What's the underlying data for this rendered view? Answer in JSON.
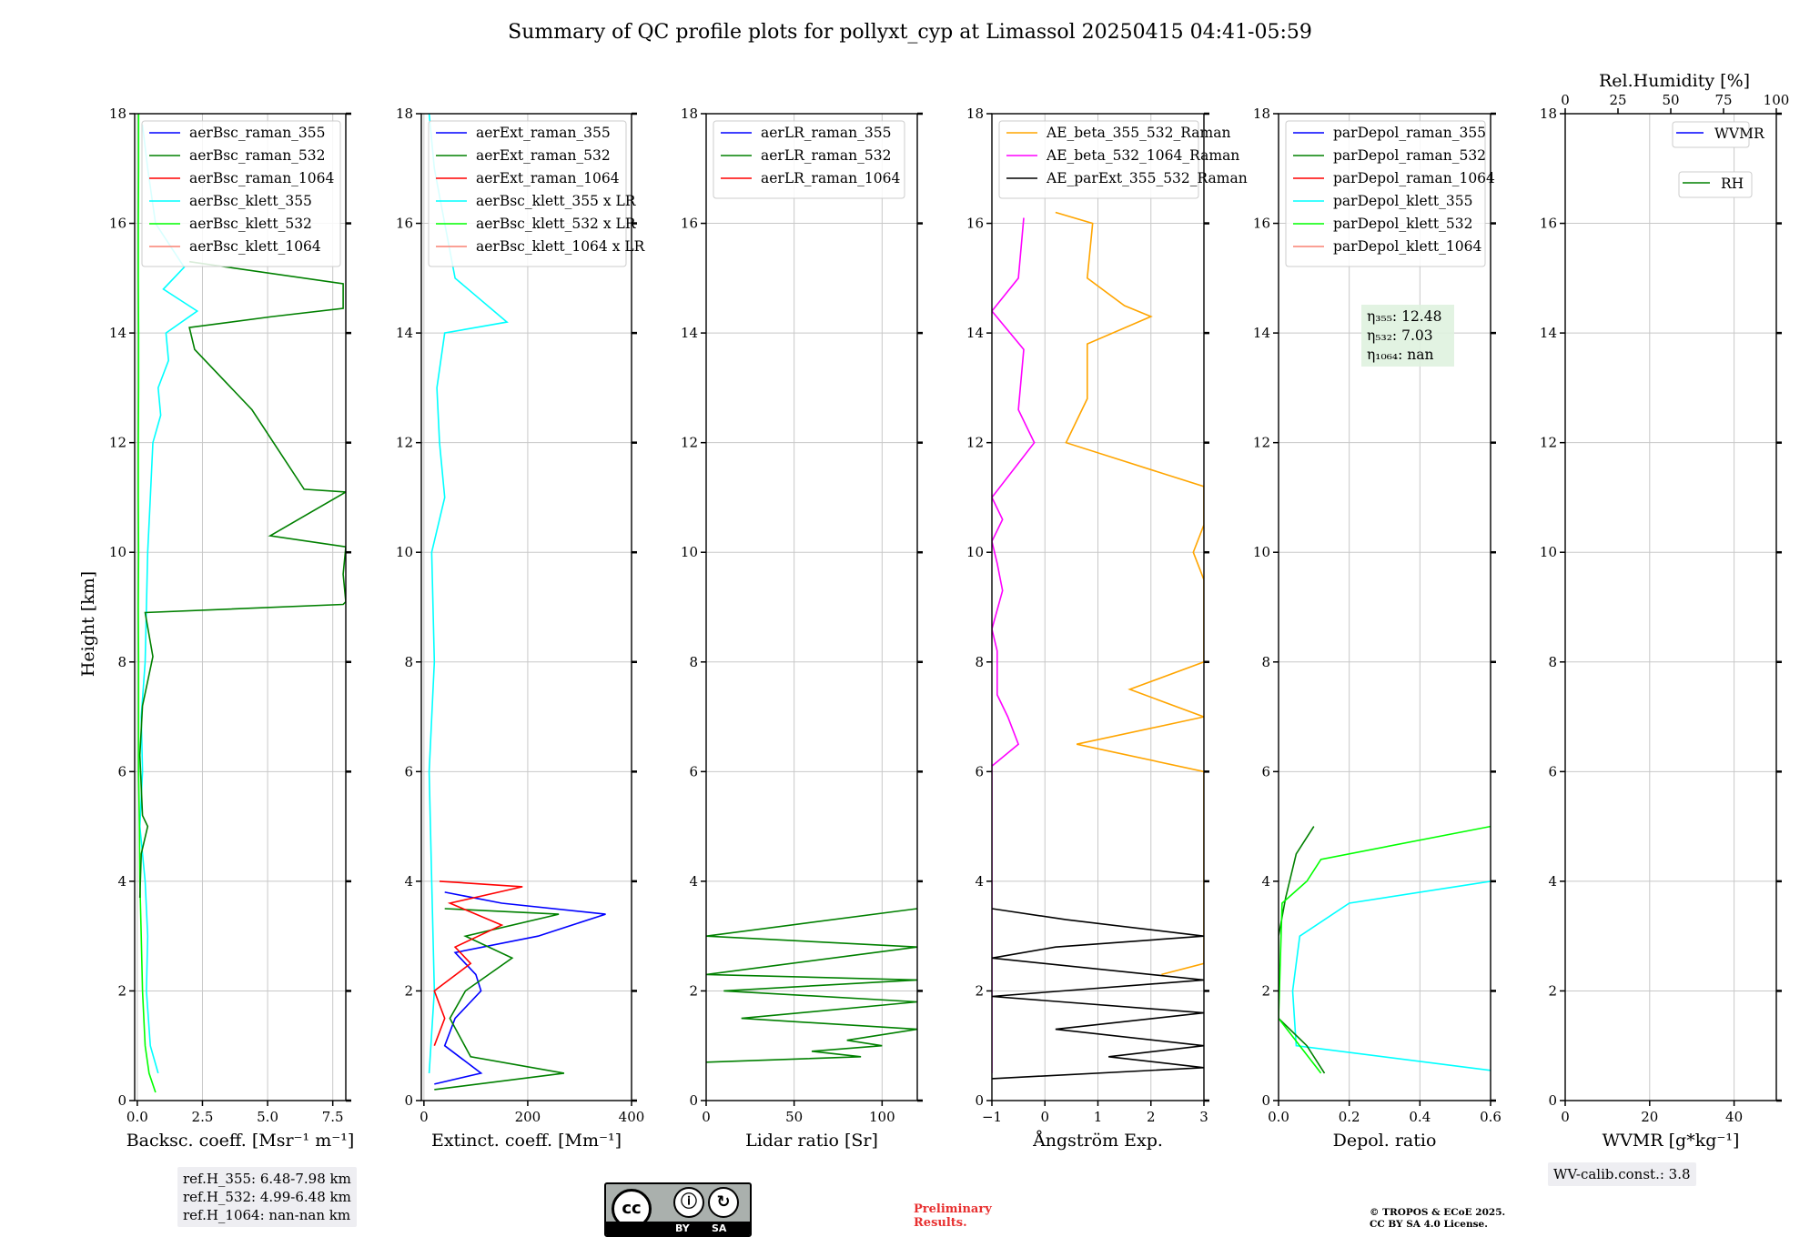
{
  "figure": {
    "title": "Summary of QC profile plots for pollyxt_cyp at Limassol 20250415 04:41-05:59",
    "ref_heights": [
      "ref.H_355: 6.48-7.98 km",
      "ref.H_532: 4.99-6.48 km",
      "ref.H_1064: nan-nan km"
    ],
    "wv_calib": "WV-calib.const.: 3.8",
    "license_badge": {
      "cc": "cc",
      "by": "BY",
      "sa": "SA"
    },
    "preliminary": [
      "Preliminary",
      "Results."
    ],
    "copyright": [
      "© TROPOS & ECoE 2025.",
      "CC BY SA 4.0 License."
    ],
    "colors": {
      "blue": "#0000ff",
      "green": "#008000",
      "red": "#ff0000",
      "cyan": "#00ffff",
      "lime": "#00ff00",
      "salmon": "#fa8072",
      "orange": "#ffa500",
      "magenta": "#ff00ff",
      "black": "#000000",
      "grid": "#c8c8c8"
    }
  },
  "chart_data": [
    {
      "type": "line",
      "ylabel": "Height [km]",
      "xlabel": "Backsc. coeff. [Msr⁻¹ m⁻¹]",
      "xlim": [
        -0.1,
        8.0
      ],
      "ylim": [
        0,
        18
      ],
      "xticks": [
        0,
        2.5,
        5,
        7.5
      ],
      "xtick_labels": [
        "0.0",
        "2.5",
        "5.0",
        "7.5"
      ],
      "yticks": [
        0,
        2,
        4,
        6,
        8,
        10,
        12,
        14,
        16,
        18
      ],
      "legend": [
        {
          "label": "aerBsc_raman_355",
          "color": "#0000ff"
        },
        {
          "label": "aerBsc_raman_532",
          "color": "#008000"
        },
        {
          "label": "aerBsc_raman_1064",
          "color": "#ff0000"
        },
        {
          "label": "aerBsc_klett_355",
          "color": "#00ffff"
        },
        {
          "label": "aerBsc_klett_532",
          "color": "#00ff00"
        },
        {
          "label": "aerBsc_klett_1064",
          "color": "#fa8072"
        }
      ],
      "series": [
        {
          "name": "aerBsc_klett_355",
          "color": "#00ffff",
          "y": [
            0.5,
            1,
            2,
            3,
            4,
            5,
            6,
            7,
            8,
            9,
            10,
            11,
            12,
            12.5,
            13,
            13.5,
            14,
            14.4,
            14.8,
            15.2,
            16,
            17,
            17.8
          ],
          "x": [
            0.8,
            0.5,
            0.35,
            0.4,
            0.3,
            0.1,
            0.2,
            0.15,
            0.3,
            0.35,
            0.4,
            0.5,
            0.6,
            0.9,
            0.8,
            1.2,
            1.1,
            2.3,
            1.0,
            1.8,
            0.7,
            0.4,
            0.2
          ]
        },
        {
          "name": "aerBsc_klett_532",
          "color": "#00ff00",
          "y": [
            0.15,
            0.5,
            1,
            2,
            3,
            4,
            5,
            6,
            7,
            8,
            9,
            10,
            11,
            12,
            13,
            14,
            15,
            16,
            17,
            18
          ],
          "x": [
            0.7,
            0.45,
            0.3,
            0.2,
            0.15,
            0.1,
            0.08,
            0.05,
            0.05,
            0.05,
            0.04,
            0.05,
            0.04,
            0.04,
            0.05,
            0.05,
            0.04,
            0.04,
            0.05,
            0.05
          ]
        },
        {
          "name": "aerBsc_raman_532",
          "color": "#008000",
          "y": [
            3.7,
            4.5,
            5.0,
            5.2,
            6.3,
            7.2,
            8.1,
            8.9,
            9.05,
            9.1,
            9.6,
            10.1,
            10.3,
            11.1,
            11.15,
            12.6,
            13.7,
            14.1,
            14.3,
            14.45,
            14.9,
            15.3
          ],
          "x": [
            0.1,
            0.15,
            0.4,
            0.2,
            0.1,
            0.2,
            0.6,
            0.3,
            7.9,
            8.0,
            7.9,
            8.0,
            5.1,
            8.0,
            6.4,
            4.4,
            2.2,
            2.0,
            5.2,
            7.9,
            7.9,
            2.0
          ]
        }
      ]
    },
    {
      "type": "line",
      "xlabel": "Extinct. coeff. [Mm⁻¹]",
      "xlim": [
        -5,
        400
      ],
      "ylim": [
        0,
        18
      ],
      "xticks": [
        0,
        200,
        400
      ],
      "xtick_labels": [
        "0",
        "200",
        "400"
      ],
      "yticks": [
        0,
        2,
        4,
        6,
        8,
        10,
        12,
        14,
        16,
        18
      ],
      "legend": [
        {
          "label": "aerExt_raman_355",
          "color": "#0000ff"
        },
        {
          "label": "aerExt_raman_532",
          "color": "#008000"
        },
        {
          "label": "aerExt_raman_1064",
          "color": "#ff0000"
        },
        {
          "label": "aerBsc_klett_355 x LR",
          "color": "#00ffff"
        },
        {
          "label": "aerBsc_klett_532 x LR",
          "color": "#00ff00"
        },
        {
          "label": "aerBsc_klett_1064 x LR",
          "color": "#fa8072"
        }
      ],
      "series": [
        {
          "name": "aerBsc_klett_355 x LR",
          "color": "#00ffff",
          "y": [
            0.5,
            2,
            4,
            6,
            8,
            10,
            11,
            12,
            13,
            14,
            14.2,
            15,
            16,
            17,
            18
          ],
          "x": [
            10,
            20,
            15,
            10,
            20,
            15,
            40,
            30,
            25,
            40,
            160,
            60,
            40,
            20,
            10
          ]
        },
        {
          "name": "aerExt_raman_355",
          "color": "#0000ff",
          "y": [
            0.3,
            0.5,
            1.0,
            1.5,
            2.0,
            2.3,
            2.7,
            3.0,
            3.4,
            3.6,
            3.8
          ],
          "x": [
            20,
            110,
            40,
            60,
            110,
            100,
            60,
            220,
            350,
            150,
            40
          ]
        },
        {
          "name": "aerExt_raman_532",
          "color": "#008000",
          "y": [
            0.2,
            0.5,
            0.8,
            1.5,
            2.0,
            2.6,
            3.0,
            3.4,
            3.5
          ],
          "x": [
            20,
            270,
            90,
            50,
            80,
            170,
            80,
            260,
            40
          ]
        },
        {
          "name": "aerExt_raman_1064",
          "color": "#ff0000",
          "y": [
            1.0,
            1.5,
            2.0,
            2.5,
            2.8,
            3.2,
            3.6,
            3.9,
            4.0
          ],
          "x": [
            20,
            40,
            20,
            90,
            60,
            150,
            50,
            190,
            30
          ]
        }
      ]
    },
    {
      "type": "line",
      "xlabel": "Lidar ratio [Sr]",
      "xlim": [
        0,
        120
      ],
      "ylim": [
        0,
        18
      ],
      "xticks": [
        0,
        50,
        100
      ],
      "xtick_labels": [
        "0",
        "50",
        "100"
      ],
      "yticks": [
        0,
        2,
        4,
        6,
        8,
        10,
        12,
        14,
        16,
        18
      ],
      "legend": [
        {
          "label": "aerLR_raman_355",
          "color": "#0000ff"
        },
        {
          "label": "aerLR_raman_532",
          "color": "#008000"
        },
        {
          "label": "aerLR_raman_1064",
          "color": "#ff0000"
        }
      ],
      "series": [
        {
          "name": "aerLR_raman_532",
          "color": "#008000",
          "y": [
            0.7,
            0.8,
            0.9,
            1.0,
            1.1,
            1.3,
            1.5,
            1.8,
            2.0,
            2.2,
            2.3,
            2.8,
            3.0,
            3.5
          ],
          "x": [
            0,
            88,
            60,
            100,
            80,
            120,
            20,
            120,
            10,
            120,
            0,
            120,
            0,
            120
          ]
        }
      ]
    },
    {
      "type": "line",
      "xlabel": "Ångström Exp.",
      "xlim": [
        -1,
        3
      ],
      "ylim": [
        0,
        18
      ],
      "xticks": [
        -1,
        0,
        1,
        2,
        3
      ],
      "xtick_labels": [
        "−1",
        "0",
        "1",
        "2",
        "3"
      ],
      "yticks": [
        0,
        2,
        4,
        6,
        8,
        10,
        12,
        14,
        16,
        18
      ],
      "legend": [
        {
          "label": "AE_beta_355_532_Raman",
          "color": "#ffa500"
        },
        {
          "label": "AE_beta_532_1064_Raman",
          "color": "#ff00ff"
        },
        {
          "label": "AE_parExt_355_532_Raman",
          "color": "#000000"
        }
      ],
      "series": [
        {
          "name": "AE_beta_355_532_Raman",
          "color": "#ffa500",
          "y": [
            16.2,
            16.0,
            15.0,
            14.5,
            14.3,
            13.8,
            12.8,
            12.0,
            11.2,
            10.5,
            10.0,
            9.5,
            8.8,
            8.0,
            7.5,
            7.0,
            6.5,
            6.0,
            5.2,
            4.5,
            3.8,
            2.5,
            2.3
          ],
          "x": [
            0.2,
            0.9,
            0.8,
            1.5,
            2.0,
            0.8,
            0.8,
            0.4,
            3.0,
            3.0,
            2.8,
            3.0,
            3.0,
            3.0,
            1.6,
            3.0,
            0.6,
            3.0,
            3.0,
            3.0,
            3.0,
            3.0,
            2.2
          ]
        },
        {
          "name": "AE_beta_532_1064_Raman",
          "color": "#ff00ff",
          "y": [
            16.1,
            15.0,
            14.4,
            13.7,
            12.6,
            12.0,
            11.0,
            10.6,
            10.2,
            9.8,
            9.3,
            8.6,
            8.2,
            7.6,
            7.4,
            7.0,
            6.5,
            6.1,
            5.3,
            4.5,
            3.8,
            2.4,
            0.5
          ],
          "x": [
            -0.4,
            -0.5,
            -1.0,
            -0.4,
            -0.5,
            -0.2,
            -1.0,
            -0.8,
            -1.0,
            -0.9,
            -0.8,
            -1.0,
            -0.9,
            -0.9,
            -0.9,
            -0.7,
            -0.5,
            -1.0,
            -1.0,
            -1.0,
            -1.0,
            -1.0,
            -1.0
          ]
        },
        {
          "name": "AE_parExt_355_532_Raman",
          "color": "#000000",
          "y": [
            3.5,
            3.3,
            3.0,
            2.8,
            2.6,
            2.2,
            1.9,
            1.6,
            1.3,
            1.0,
            0.8,
            0.6,
            0.4
          ],
          "x": [
            -1.0,
            0.4,
            3.0,
            0.2,
            -1.0,
            3.0,
            -1.0,
            3.0,
            0.2,
            3.0,
            1.2,
            3.0,
            -1.0
          ]
        }
      ]
    },
    {
      "type": "line",
      "xlabel": "Depol. ratio",
      "xlim": [
        0,
        0.6
      ],
      "ylim": [
        0,
        18
      ],
      "xticks": [
        0,
        0.2,
        0.4,
        0.6
      ],
      "xtick_labels": [
        "0.0",
        "0.2",
        "0.4",
        "0.6"
      ],
      "yticks": [
        0,
        2,
        4,
        6,
        8,
        10,
        12,
        14,
        16,
        18
      ],
      "legend": [
        {
          "label": "parDepol_raman_355",
          "color": "#0000ff"
        },
        {
          "label": "parDepol_raman_532",
          "color": "#008000"
        },
        {
          "label": "parDepol_raman_1064",
          "color": "#ff0000"
        },
        {
          "label": "parDepol_klett_355",
          "color": "#00ffff"
        },
        {
          "label": "parDepol_klett_532",
          "color": "#00ff00"
        },
        {
          "label": "parDepol_klett_1064",
          "color": "#fa8072"
        }
      ],
      "annotation": [
        "η₃₅₅: 12.48",
        "η₅₃₂: 7.03",
        "η₁₀₆₄: nan"
      ],
      "series": [
        {
          "name": "parDepol_klett_355",
          "color": "#00ffff",
          "y": [
            0.55,
            1,
            2,
            3,
            3.6,
            4.0
          ],
          "x": [
            0.6,
            0.05,
            0.04,
            0.06,
            0.2,
            0.6
          ]
        },
        {
          "name": "parDepol_raman_532",
          "color": "#008000",
          "y": [
            0.5,
            1.0,
            1.5,
            3.0,
            3.7,
            4.5,
            5.0
          ],
          "x": [
            0.13,
            0.08,
            0.0,
            0.0,
            0.02,
            0.05,
            0.1
          ]
        },
        {
          "name": "parDepol_klett_532",
          "color": "#00ff00",
          "y": [
            0.5,
            1.0,
            1.5,
            3.6,
            4.0,
            4.4,
            5.0
          ],
          "x": [
            0.12,
            0.06,
            0.0,
            0.01,
            0.08,
            0.12,
            0.6
          ]
        }
      ]
    },
    {
      "type": "line",
      "xlabel": "WVMR [g*kg⁻¹]",
      "xlim": [
        0,
        50
      ],
      "ylim": [
        0,
        18
      ],
      "xticks": [
        0,
        20,
        40
      ],
      "xtick_labels": [
        "0",
        "20",
        "40"
      ],
      "yticks": [
        0,
        2,
        4,
        6,
        8,
        10,
        12,
        14,
        16,
        18
      ],
      "top_axis": {
        "label": "Rel.Humidity [%]",
        "lim": [
          0,
          100
        ],
        "ticks": [
          0,
          25,
          50,
          75,
          100
        ],
        "tick_labels": [
          "0",
          "25",
          "50",
          "75",
          "100"
        ]
      },
      "legend": [
        {
          "label": "WVMR",
          "color": "#0000ff"
        },
        {
          "label": "RH",
          "color": "#008000"
        }
      ],
      "series": []
    }
  ]
}
